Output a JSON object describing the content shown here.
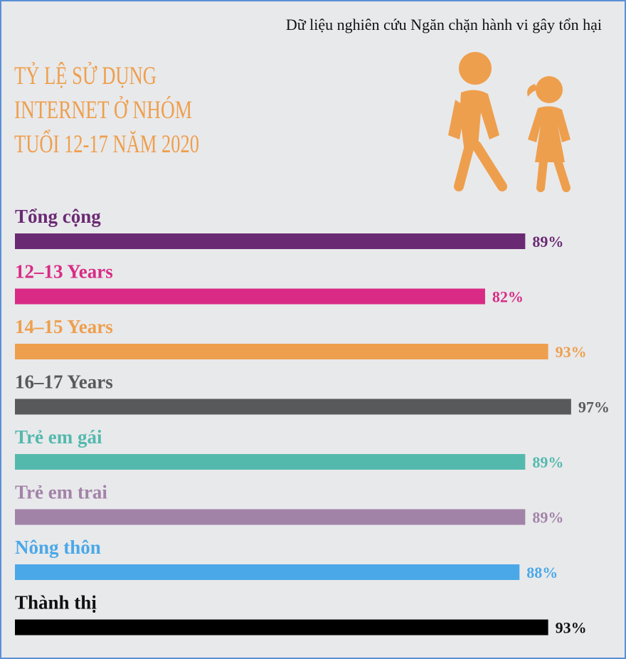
{
  "chart_data": {
    "type": "bar",
    "source": "Dữ liệu nghiên cứu Ngăn chặn hành vi gây tổn hại",
    "title": [
      "TỶ LỆ SỬ DỤNG",
      "INTERNET Ở NHÓM",
      "TUỔI 12-17 NĂM 2020"
    ],
    "title_color": "#ee9f4d",
    "orientation": "horizontal",
    "xlim": [
      0,
      100
    ],
    "categories": [
      "Tổng cộng",
      "12–13 Years",
      "14–15 Years",
      "16–17 Years",
      "Trẻ em gái",
      "Trẻ em trai",
      "Nông thôn",
      "Thành thị"
    ],
    "values": [
      89,
      82,
      93,
      97,
      89,
      89,
      88,
      93
    ],
    "value_labels": [
      "89%",
      "82%",
      "93%",
      "97%",
      "89%",
      "89%",
      "88%",
      "93%"
    ],
    "colors": [
      "#6a2a73",
      "#d92b85",
      "#ee9f4d",
      "#58595b",
      "#54b9ad",
      "#a283a8",
      "#4aa8e8",
      "#000000"
    ]
  }
}
